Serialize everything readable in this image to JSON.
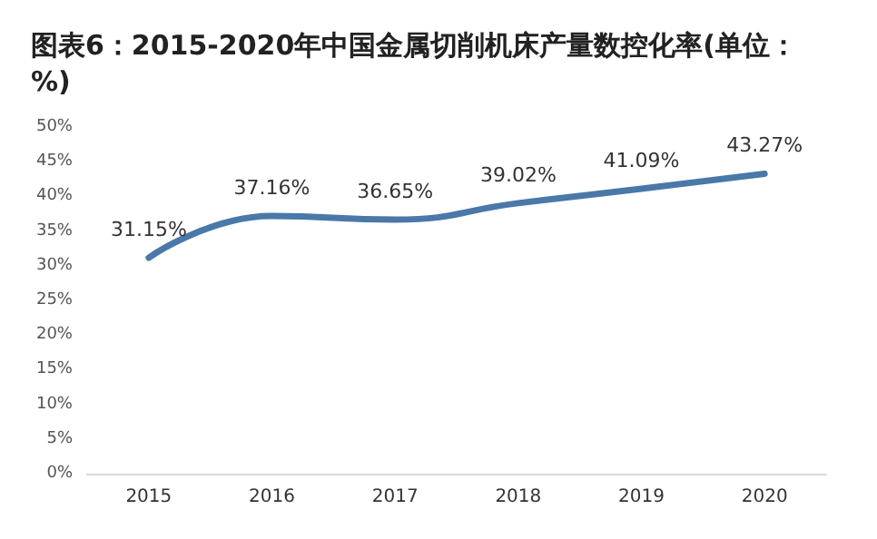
{
  "chart_data": {
    "type": "line",
    "title": "图表6：2015-2020年中国金属切削机床产量数控化率(单位：%)",
    "categories": [
      "2015",
      "2016",
      "2017",
      "2018",
      "2019",
      "2020"
    ],
    "series": [
      {
        "color": "#4a78a8",
        "values": [
          31.15,
          37.16,
          36.65,
          39.02,
          41.09,
          43.27
        ],
        "value_labels": [
          "31.15%",
          "37.16%",
          "36.65%",
          "39.02%",
          "41.09%",
          "43.27%"
        ]
      }
    ],
    "ylim": [
      0,
      50
    ],
    "yticks": [
      {
        "value": 0,
        "label": "0%"
      },
      {
        "value": 5,
        "label": "5%"
      },
      {
        "value": 10,
        "label": "10%"
      },
      {
        "value": 15,
        "label": "15%"
      },
      {
        "value": 20,
        "label": "20%"
      },
      {
        "value": 25,
        "label": "25%"
      },
      {
        "value": 30,
        "label": "30%"
      },
      {
        "value": 35,
        "label": "35%"
      },
      {
        "value": 40,
        "label": "40%"
      },
      {
        "value": 45,
        "label": "45%"
      },
      {
        "value": 50,
        "label": "50%"
      }
    ],
    "grid": false,
    "marker": "none",
    "line_style": "solid"
  }
}
